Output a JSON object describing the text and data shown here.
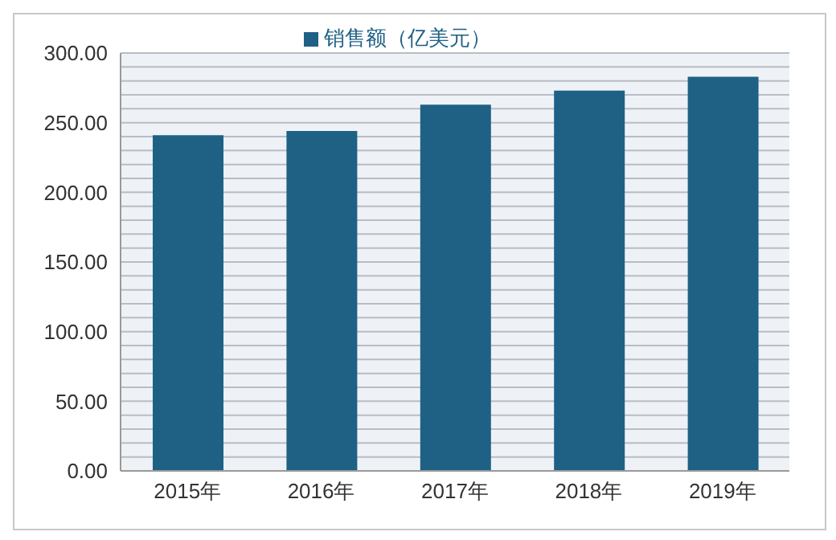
{
  "chart_data": {
    "type": "bar",
    "categories": [
      "2015年",
      "2016年",
      "2017年",
      "2018年",
      "2019年"
    ],
    "series": [
      {
        "name": "销售额（亿美元）",
        "color": "#1f6185",
        "values": [
          241,
          244,
          263,
          273,
          283
        ]
      }
    ],
    "ylim": [
      0,
      300
    ],
    "yticks": [
      {
        "value": 0,
        "label": "0.00"
      },
      {
        "value": 10,
        "label": null
      },
      {
        "value": 20,
        "label": null
      },
      {
        "value": 30,
        "label": null
      },
      {
        "value": 40,
        "label": null
      },
      {
        "value": 50,
        "label": "50.00"
      },
      {
        "value": 60,
        "label": null
      },
      {
        "value": 70,
        "label": null
      },
      {
        "value": 80,
        "label": null
      },
      {
        "value": 90,
        "label": null
      },
      {
        "value": 100,
        "label": "100.00"
      },
      {
        "value": 110,
        "label": null
      },
      {
        "value": 120,
        "label": null
      },
      {
        "value": 130,
        "label": null
      },
      {
        "value": 140,
        "label": null
      },
      {
        "value": 150,
        "label": "150.00"
      },
      {
        "value": 160,
        "label": null
      },
      {
        "value": 170,
        "label": null
      },
      {
        "value": 180,
        "label": null
      },
      {
        "value": 190,
        "label": null
      },
      {
        "value": 200,
        "label": "200.00"
      },
      {
        "value": 210,
        "label": null
      },
      {
        "value": 220,
        "label": null
      },
      {
        "value": 230,
        "label": null
      },
      {
        "value": 240,
        "label": null
      },
      {
        "value": 250,
        "label": "250.00"
      },
      {
        "value": 260,
        "label": null
      },
      {
        "value": 270,
        "label": null
      },
      {
        "value": 280,
        "label": null
      },
      {
        "value": 290,
        "label": null
      },
      {
        "value": 300,
        "label": "300.00"
      }
    ],
    "grid": "y",
    "legend": "top"
  }
}
